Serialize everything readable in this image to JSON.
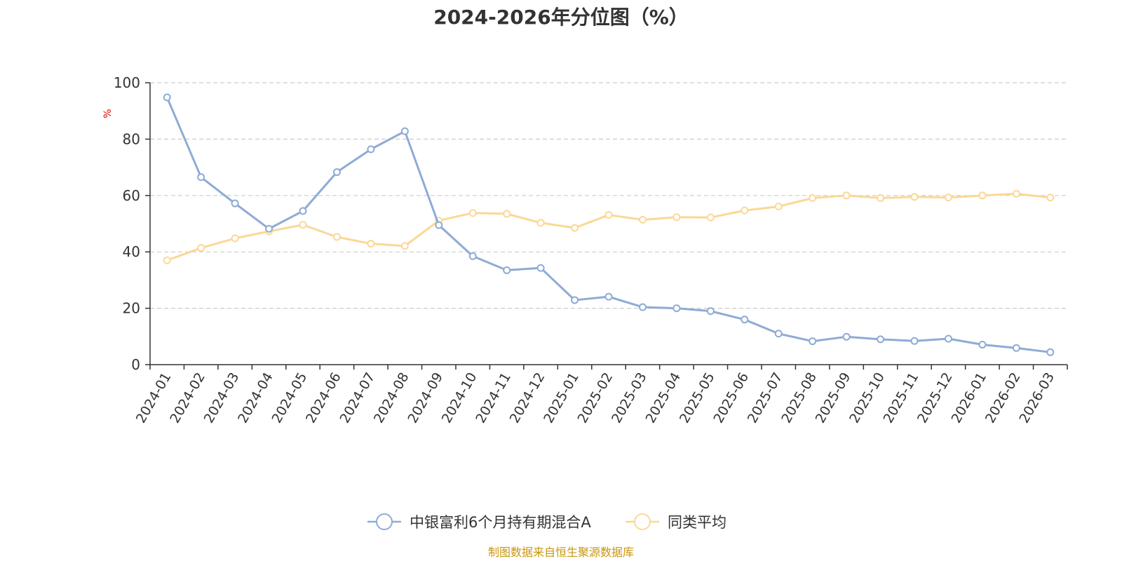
{
  "chart_data": {
    "type": "line",
    "title": "2024-2026年分位图（%）",
    "ylabel": "%",
    "xlabel": "",
    "ylim": [
      0,
      100
    ],
    "yticks": [
      0,
      20,
      40,
      60,
      80,
      100
    ],
    "grid": true,
    "legend_position": "bottom-center",
    "categories": [
      "2024-01",
      "2024-02",
      "2024-03",
      "2024-04",
      "2024-05",
      "2024-06",
      "2024-07",
      "2024-08",
      "2024-09",
      "2024-10",
      "2024-11",
      "2024-12",
      "2025-01",
      "2025-02",
      "2025-03",
      "2025-04",
      "2025-05",
      "2025-06",
      "2025-07",
      "2025-08",
      "2025-09",
      "2025-10",
      "2025-11",
      "2025-12",
      "2026-01",
      "2026-02",
      "2026-03"
    ],
    "series": [
      {
        "name": "中银富利6个月持有期混合A",
        "color": "#8eabd6",
        "values": [
          94.8,
          66.5,
          57.2,
          48.2,
          54.5,
          68.3,
          76.4,
          82.8,
          49.5,
          38.5,
          33.5,
          34.3,
          22.9,
          24.1,
          20.4,
          20.0,
          19.0,
          16.0,
          11.0,
          8.3,
          9.9,
          9.0,
          8.4,
          9.2,
          7.1,
          5.9,
          4.4
        ]
      },
      {
        "name": "同类平均",
        "color": "#fbd896",
        "values": [
          37.0,
          41.4,
          44.8,
          47.3,
          49.6,
          45.3,
          42.9,
          42.1,
          51.1,
          53.8,
          53.5,
          50.3,
          48.5,
          53.1,
          51.4,
          52.3,
          52.2,
          54.7,
          56.1,
          59.1,
          60.0,
          59.1,
          59.5,
          59.3,
          60.0,
          60.6,
          59.3
        ]
      }
    ]
  },
  "source_text": "制图数据来自恒生聚源数据库"
}
